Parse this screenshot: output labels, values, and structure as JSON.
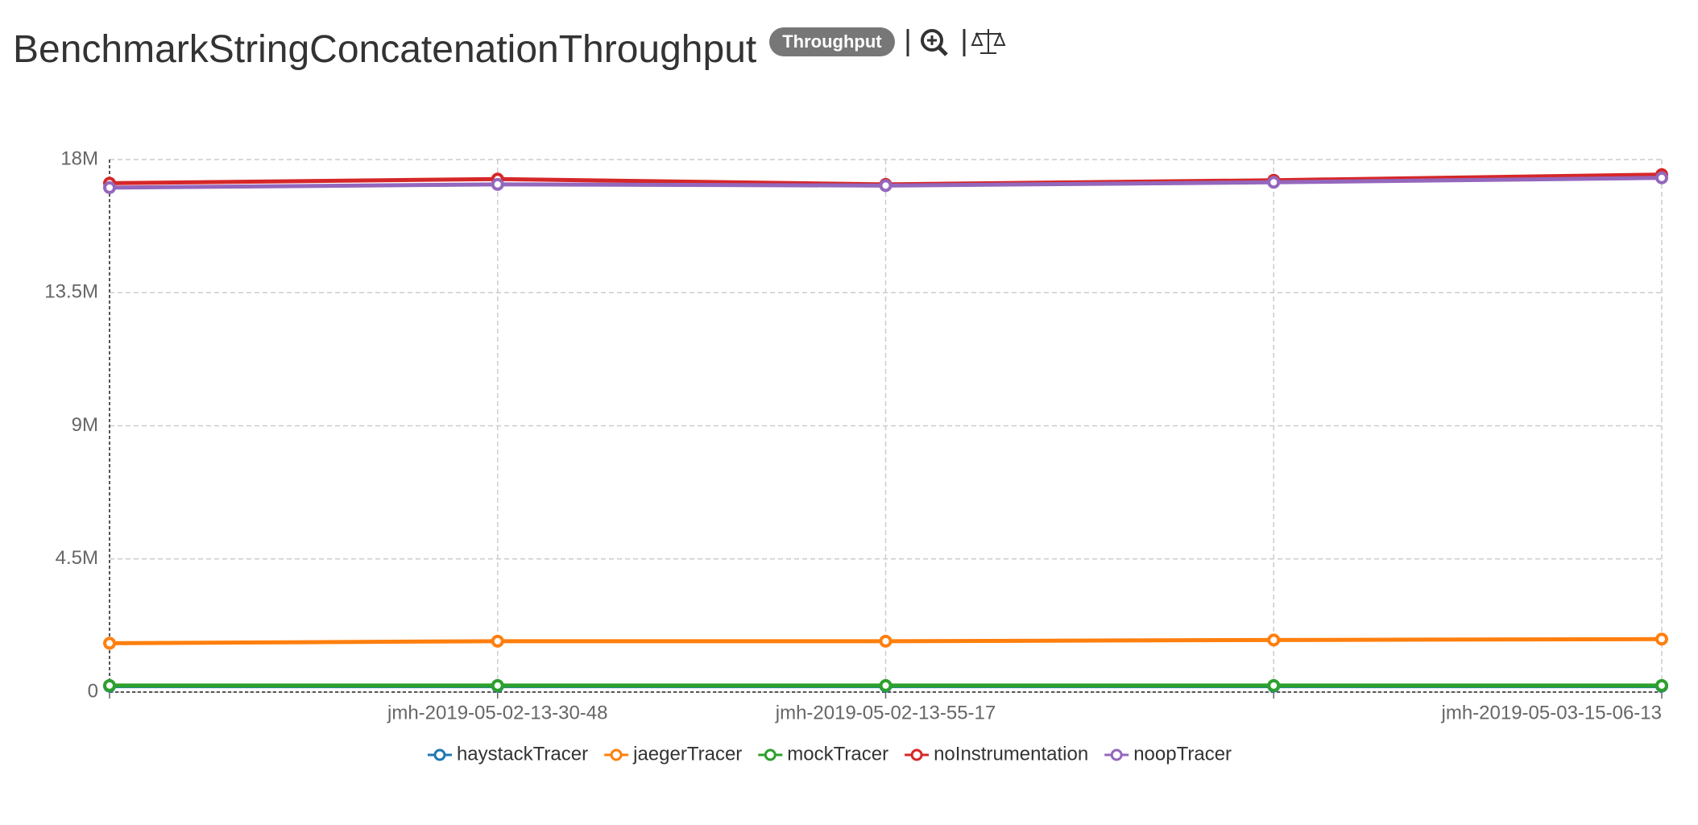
{
  "header": {
    "title": "BenchmarkStringConcatenationThroughput",
    "badge": "Throughput"
  },
  "chart_data": {
    "type": "line",
    "categories": [
      null,
      "jmh-2019-05-02-13-30-48",
      "jmh-2019-05-02-13-55-17",
      null,
      "jmh-2019-05-03-15-06-13"
    ],
    "series": [
      {
        "name": "haystackTracer",
        "color": "#1f77b4",
        "values": [
          200000,
          200000,
          200000,
          200000,
          200000
        ]
      },
      {
        "name": "jaegerTracer",
        "color": "#ff7f0e",
        "values": [
          1650000,
          1720000,
          1720000,
          1760000,
          1790000
        ]
      },
      {
        "name": "mockTracer",
        "color": "#2ca02c",
        "values": [
          220000,
          220000,
          220000,
          220000,
          220000
        ]
      },
      {
        "name": "noInstrumentation",
        "color": "#d62728",
        "values": [
          17200000,
          17340000,
          17160000,
          17300000,
          17490000
        ]
      },
      {
        "name": "noopTracer",
        "color": "#9467bd",
        "values": [
          17050000,
          17160000,
          17120000,
          17230000,
          17380000
        ]
      }
    ],
    "ylim": [
      0,
      18000000
    ],
    "yticks": [
      0,
      {
        "value": 4500000,
        "label": "4.5M"
      },
      {
        "value": 9000000,
        "label": "9M"
      },
      {
        "value": 13500000,
        "label": "13.5M"
      },
      {
        "value": 18000000,
        "label": "18M"
      }
    ],
    "grid": true,
    "legend": "bottom"
  }
}
